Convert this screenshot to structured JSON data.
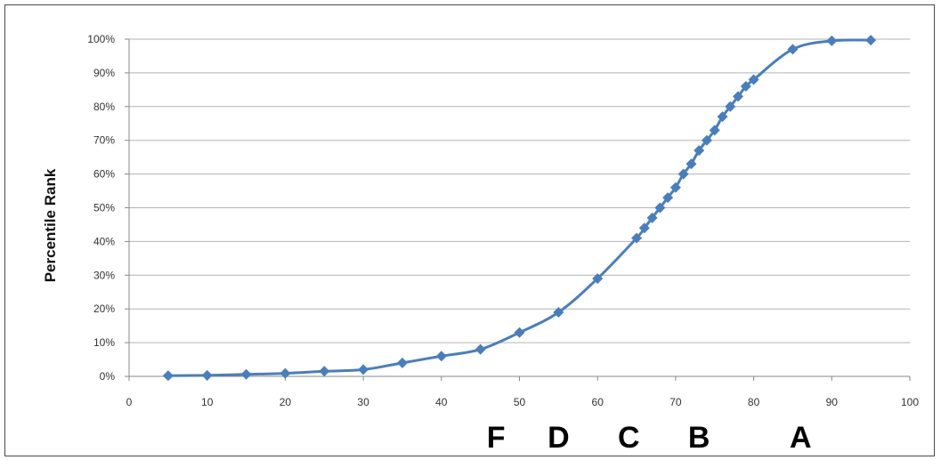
{
  "chart_data": {
    "type": "line",
    "title": "",
    "xlabel": "",
    "ylabel": "Percentile Rank",
    "xlim": [
      0,
      100
    ],
    "ylim": [
      0,
      100
    ],
    "x_ticks": [
      "0",
      "10",
      "20",
      "30",
      "40",
      "50",
      "60",
      "70",
      "80",
      "90",
      "100"
    ],
    "y_ticks": [
      "0%",
      "10%",
      "20%",
      "30%",
      "40%",
      "50%",
      "60%",
      "70%",
      "80%",
      "90%",
      "100%"
    ],
    "grid": "horizontal",
    "legend": "none",
    "series": [
      {
        "color": "#4a7ebb",
        "marker": "diamond",
        "x": [
          5,
          10,
          15,
          20,
          25,
          30,
          35,
          40,
          45,
          50,
          55,
          60,
          65,
          66,
          67,
          68,
          69,
          70,
          71,
          72,
          73,
          74,
          75,
          76,
          77,
          78,
          79,
          80,
          85,
          90,
          95
        ],
        "y": [
          0.2,
          0.3,
          0.6,
          0.9,
          1.5,
          2,
          4,
          6,
          8,
          13,
          19,
          29,
          41,
          44,
          47,
          50,
          53,
          56,
          60,
          63,
          67,
          70,
          73,
          77,
          80,
          83,
          86,
          88,
          97,
          99.5,
          99.7
        ]
      }
    ],
    "grade_labels": [
      {
        "text": "F",
        "x": 47
      },
      {
        "text": "D",
        "x": 55
      },
      {
        "text": "C",
        "x": 64
      },
      {
        "text": "B",
        "x": 73
      },
      {
        "text": "A",
        "x": 86
      }
    ]
  }
}
